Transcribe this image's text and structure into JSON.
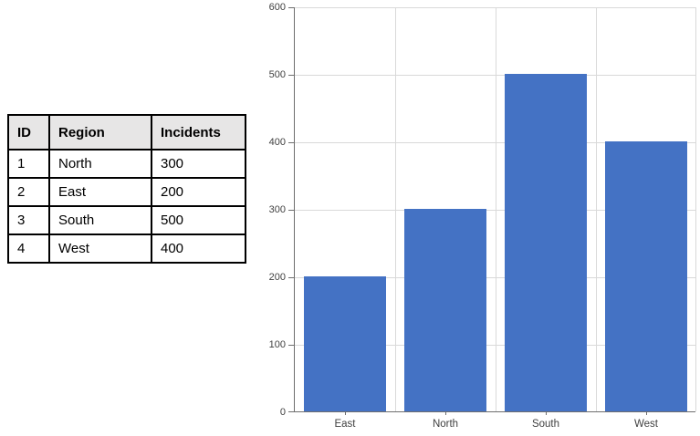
{
  "table": {
    "headers": [
      "ID",
      "Region",
      "Incidents"
    ],
    "rows": [
      [
        "1",
        "North",
        "300"
      ],
      [
        "2",
        "East",
        "200"
      ],
      [
        "3",
        "South",
        "500"
      ],
      [
        "4",
        "West",
        "400"
      ]
    ]
  },
  "chart_data": {
    "type": "bar",
    "categories": [
      "East",
      "North",
      "South",
      "West"
    ],
    "values": [
      200,
      300,
      500,
      400
    ],
    "title": "",
    "xlabel": "",
    "ylabel": "",
    "ylim": [
      0,
      600
    ],
    "ytick_interval": 100,
    "ytick_labels": [
      "0",
      "100",
      "200",
      "300",
      "400",
      "500",
      "600"
    ],
    "grid": true,
    "legend": false,
    "bar_color": "#4472c4",
    "gridline_color": "#d9d9d9",
    "axis_color": "#6e6e6e",
    "tick_label_color": "#404040"
  }
}
